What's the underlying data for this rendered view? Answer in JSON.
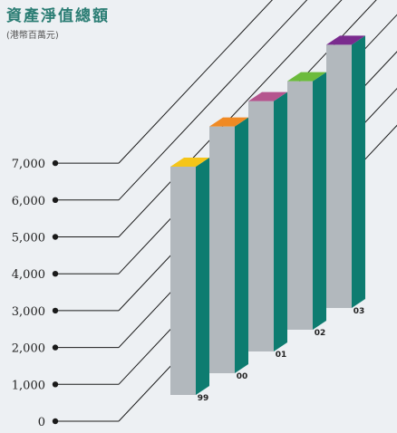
{
  "title": "資產淨值總額",
  "subtitle": "(港幣百萬元)",
  "colors": {
    "title": "#2b7d74",
    "bar_front": "#b2b8bd",
    "bar_side": "#0d7c70",
    "bar_tops": [
      "#f5c518",
      "#f08a24",
      "#b5558e",
      "#6cbb3c",
      "#7a2a8e"
    ],
    "lines": "#1a1a1a"
  },
  "chart_data": {
    "type": "bar",
    "style": "3d-perspective",
    "title": "資產淨值總額",
    "subtitle": "(港幣百萬元)",
    "categories": [
      "99",
      "00",
      "01",
      "02",
      "03"
    ],
    "values": [
      6200,
      6700,
      6800,
      6750,
      7150
    ],
    "yticks": [
      "0",
      "1,000",
      "2,000",
      "3,000",
      "4,000",
      "5,000",
      "6,000",
      "7,000"
    ],
    "ylim": [
      0,
      8000
    ],
    "grid": true
  }
}
